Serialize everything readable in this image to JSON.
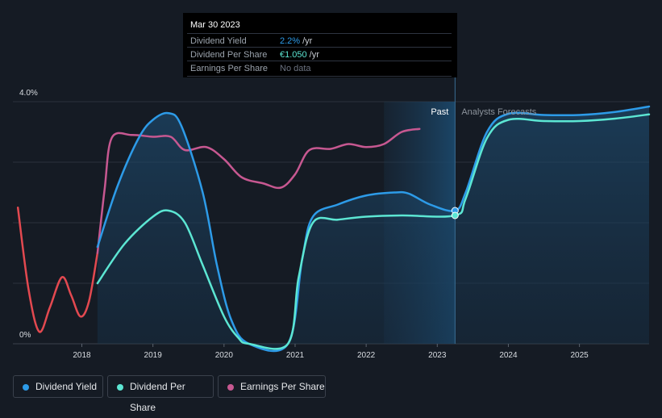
{
  "tooltip": {
    "date": "Mar 30 2023",
    "rows": [
      {
        "label": "Dividend Yield",
        "value": "2.2%",
        "unit": "/yr",
        "color": "#2d9be8"
      },
      {
        "label": "Dividend Per Share",
        "value": "€1.050",
        "unit": "/yr",
        "color": "#5ce6d3"
      },
      {
        "label": "Earnings Per Share",
        "value": "No data",
        "unit": "",
        "color": "#6b7280"
      }
    ]
  },
  "chart_data": {
    "type": "line",
    "y_axis": {
      "min": 0,
      "max": 4.0,
      "tick_labels": [
        "4.0%",
        "0%"
      ]
    },
    "x_axis": {
      "min": 2017.03,
      "max": 2025.98,
      "tick_labels": [
        "2018",
        "2019",
        "2020",
        "2021",
        "2022",
        "2023",
        "2024",
        "2025"
      ]
    },
    "past_label": "Past",
    "forecast_label": "Analysts Forecasts",
    "past_end": 2023.25,
    "series": [
      {
        "name": "Dividend Yield",
        "color": "#2d9be8",
        "points": [
          [
            2018.22,
            1.6
          ],
          [
            2018.5,
            2.6
          ],
          [
            2018.8,
            3.4
          ],
          [
            2019.0,
            3.7
          ],
          [
            2019.22,
            3.81
          ],
          [
            2019.4,
            3.6
          ],
          [
            2019.7,
            2.5
          ],
          [
            2019.9,
            1.3
          ],
          [
            2020.1,
            0.4
          ],
          [
            2020.35,
            0.0
          ],
          [
            2020.9,
            0.0
          ],
          [
            2021.1,
            1.4
          ],
          [
            2021.25,
            2.1
          ],
          [
            2021.6,
            2.3
          ],
          [
            2022.0,
            2.45
          ],
          [
            2022.4,
            2.5
          ],
          [
            2022.6,
            2.48
          ],
          [
            2022.9,
            2.3
          ],
          [
            2023.25,
            2.2
          ],
          [
            2023.4,
            2.5
          ],
          [
            2023.7,
            3.5
          ],
          [
            2024.0,
            3.8
          ],
          [
            2024.5,
            3.78
          ],
          [
            2025.0,
            3.78
          ],
          [
            2025.5,
            3.83
          ],
          [
            2025.98,
            3.92
          ]
        ]
      },
      {
        "name": "Dividend Per Share",
        "color": "#5ce6d3",
        "points": [
          [
            2018.22,
            1.0
          ],
          [
            2018.6,
            1.65
          ],
          [
            2019.0,
            2.1
          ],
          [
            2019.22,
            2.2
          ],
          [
            2019.45,
            2.0
          ],
          [
            2019.7,
            1.3
          ],
          [
            2020.0,
            0.45
          ],
          [
            2020.2,
            0.1
          ],
          [
            2020.35,
            0.0
          ],
          [
            2020.9,
            0.0
          ],
          [
            2021.05,
            1.1
          ],
          [
            2021.25,
            2.0
          ],
          [
            2021.6,
            2.05
          ],
          [
            2022.0,
            2.1
          ],
          [
            2022.5,
            2.12
          ],
          [
            2023.25,
            2.12
          ],
          [
            2023.4,
            2.4
          ],
          [
            2023.7,
            3.4
          ],
          [
            2024.0,
            3.7
          ],
          [
            2024.5,
            3.68
          ],
          [
            2025.0,
            3.68
          ],
          [
            2025.5,
            3.72
          ],
          [
            2025.98,
            3.79
          ]
        ]
      },
      {
        "name": "Earnings Per Share",
        "color": "#c75891",
        "points": [
          [
            2018.22,
            1.5
          ],
          [
            2018.32,
            2.55
          ],
          [
            2018.42,
            3.4
          ],
          [
            2018.7,
            3.45
          ],
          [
            2019.0,
            3.42
          ],
          [
            2019.25,
            3.42
          ],
          [
            2019.45,
            3.2
          ],
          [
            2019.75,
            3.25
          ],
          [
            2020.0,
            3.05
          ],
          [
            2020.25,
            2.75
          ],
          [
            2020.55,
            2.65
          ],
          [
            2020.8,
            2.58
          ],
          [
            2021.0,
            2.8
          ],
          [
            2021.2,
            3.2
          ],
          [
            2021.5,
            3.22
          ],
          [
            2021.75,
            3.3
          ],
          [
            2022.0,
            3.25
          ],
          [
            2022.25,
            3.3
          ],
          [
            2022.5,
            3.5
          ],
          [
            2022.75,
            3.55
          ]
        ]
      },
      {
        "name": "Earnings Per Share (early)",
        "color": "#e34950",
        "points": [
          [
            2017.1,
            2.25
          ],
          [
            2017.25,
            0.9
          ],
          [
            2017.4,
            0.2
          ],
          [
            2017.55,
            0.6
          ],
          [
            2017.72,
            1.1
          ],
          [
            2017.85,
            0.8
          ],
          [
            2017.98,
            0.45
          ],
          [
            2018.1,
            0.7
          ],
          [
            2018.22,
            1.5
          ]
        ]
      }
    ],
    "markers": [
      {
        "series": "Dividend Yield",
        "x": 2023.25,
        "y": 2.2
      },
      {
        "series": "Dividend Per Share",
        "x": 2023.25,
        "y": 2.12
      }
    ]
  },
  "legend": [
    {
      "label": "Dividend Yield",
      "color": "#2d9be8"
    },
    {
      "label": "Dividend Per Share",
      "color": "#5ce6d3"
    },
    {
      "label": "Earnings Per Share",
      "color": "#c75891"
    }
  ]
}
